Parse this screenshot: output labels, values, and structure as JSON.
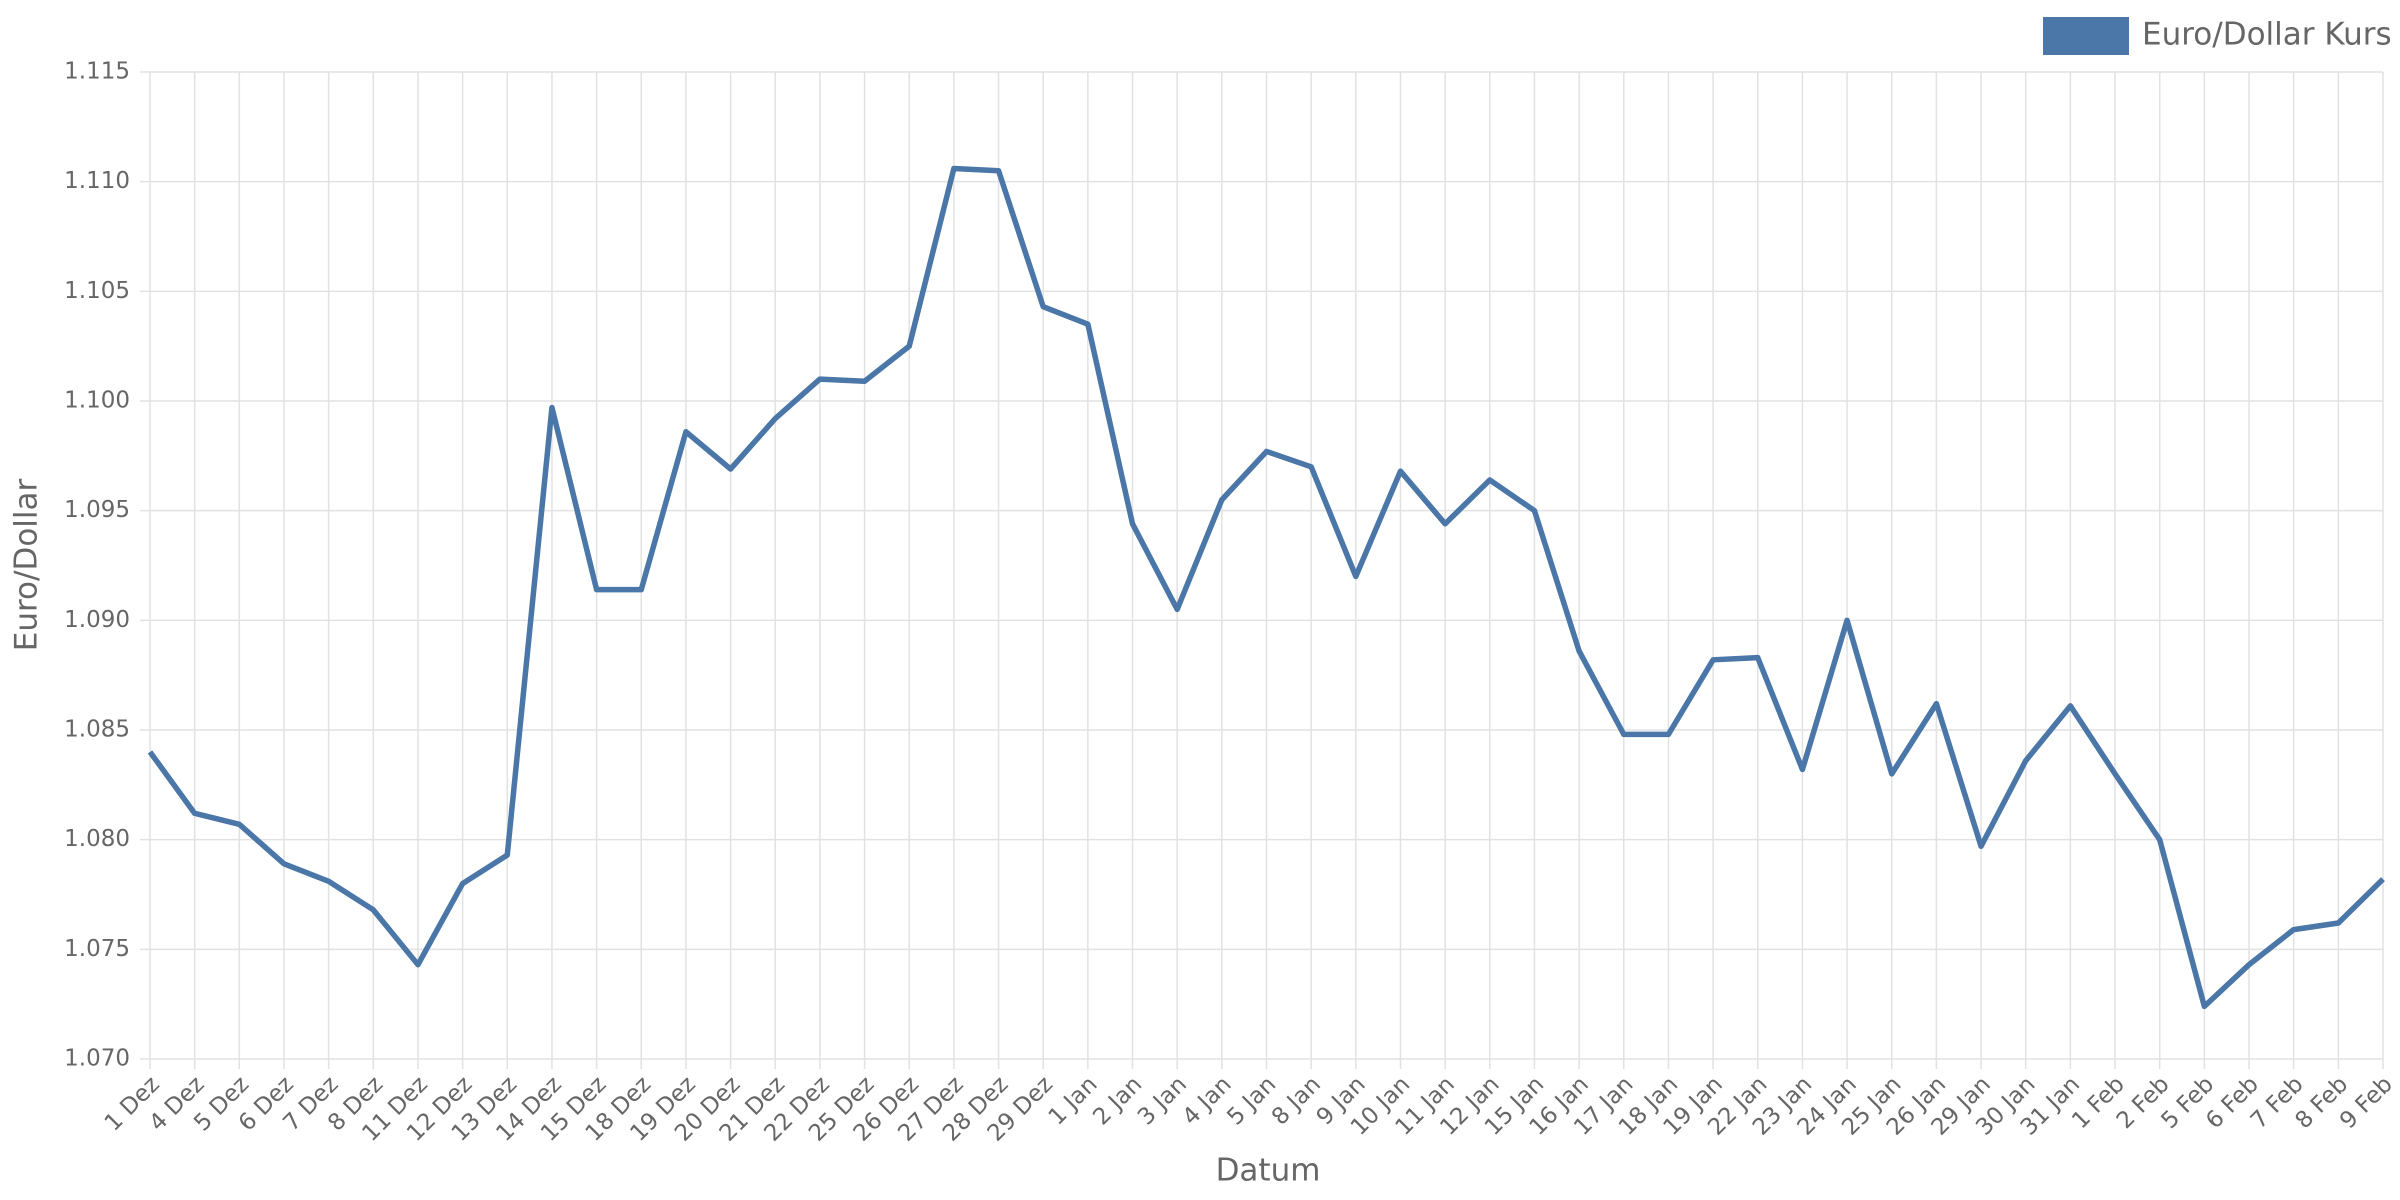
{
  "chart_data": {
    "type": "line",
    "x_label": "Datum",
    "y_label": "Euro/Dollar",
    "categories": [
      "1 Dez",
      "4 Dez",
      "5 Dez",
      "6 Dez",
      "7 Dez",
      "8 Dez",
      "11 Dez",
      "12 Dez",
      "13 Dez",
      "14 Dez",
      "15 Dez",
      "18 Dez",
      "19 Dez",
      "20 Dez",
      "21 Dez",
      "22 Dez",
      "25 Dez",
      "26 Dez",
      "27 Dez",
      "28 Dez",
      "29 Dez",
      "1 Jan",
      "2 Jan",
      "3 Jan",
      "4 Jan",
      "5 Jan",
      "8 Jan",
      "9 Jan",
      "10 Jan",
      "11 Jan",
      "12 Jan",
      "15 Jan",
      "16 Jan",
      "17 Jan",
      "18 Jan",
      "19 Jan",
      "22 Jan",
      "23 Jan",
      "24 Jan",
      "25 Jan",
      "26 Jan",
      "29 Jan",
      "30 Jan",
      "31 Jan",
      "1 Feb",
      "2 Feb",
      "5 Feb",
      "6 Feb",
      "7 Feb",
      "8 Feb",
      "9 Feb"
    ],
    "series": [
      {
        "name": "Euro/Dollar Kurs",
        "color": "#4a76a8",
        "values": [
          1.084,
          1.0812,
          1.0807,
          1.0789,
          1.0781,
          1.0768,
          1.0743,
          1.078,
          1.0793,
          1.0997,
          1.0914,
          1.0914,
          1.0986,
          1.0969,
          1.0992,
          1.101,
          1.1009,
          1.1025,
          1.1106,
          1.1105,
          1.1043,
          1.1035,
          1.0944,
          1.0905,
          1.0955,
          1.0977,
          1.097,
          1.092,
          1.0968,
          1.0944,
          1.0964,
          1.095,
          1.0886,
          1.0848,
          1.0848,
          1.0882,
          1.0883,
          1.0832,
          1.09,
          1.083,
          1.0862,
          1.0797,
          1.0836,
          1.0861,
          1.083,
          1.08,
          1.0724,
          1.0743,
          1.0759,
          1.0762,
          1.0782
        ]
      }
    ],
    "ylim": [
      1.07,
      1.115
    ],
    "yticks": [
      {
        "value": 1.07,
        "label": "1.070"
      },
      1.075,
      {
        "value": 1.08,
        "label": "1.080"
      },
      1.085,
      {
        "value": 1.09,
        "label": "1.090"
      },
      1.095,
      {
        "value": 1.1,
        "label": "1.100"
      },
      1.105,
      {
        "value": 1.11,
        "label": "1.110"
      },
      1.115
    ],
    "grid": true,
    "legend": "top-right"
  }
}
